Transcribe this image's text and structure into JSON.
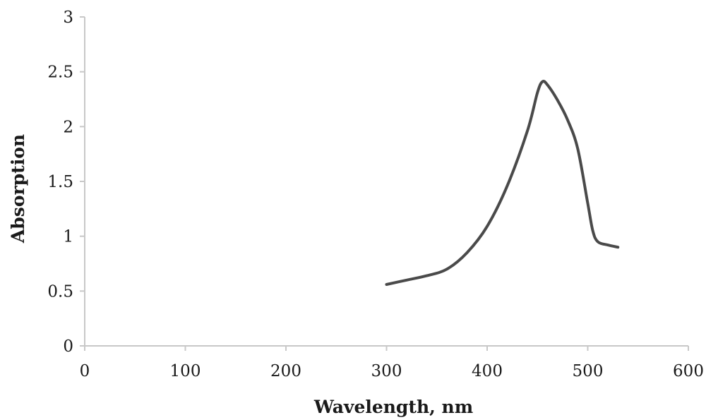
{
  "chart_data": {
    "type": "line",
    "title": "",
    "xlabel": "Wavelength, nm",
    "ylabel": "Absorption",
    "xlim": [
      0,
      600
    ],
    "ylim": [
      0,
      3
    ],
    "x_ticks": [
      "0",
      "100",
      "200",
      "300",
      "400",
      "500",
      "600"
    ],
    "y_ticks": [
      "0",
      "0.5",
      "1",
      "1.5",
      "2",
      "2.5",
      "3"
    ],
    "grid": false,
    "legend": "none",
    "line_color": "#4a4a4a",
    "axis_color": "#c8c8c8",
    "series": [
      {
        "x": [
          300,
          320,
          340,
          360,
          380,
          400,
          420,
          440,
          450,
          455,
          460,
          470,
          480,
          490,
          500,
          505,
          510,
          520,
          530
        ],
        "y": [
          0.56,
          0.6,
          0.64,
          0.7,
          0.85,
          1.09,
          1.46,
          1.96,
          2.31,
          2.41,
          2.38,
          2.24,
          2.06,
          1.8,
          1.3,
          1.05,
          0.95,
          0.92,
          0.9
        ]
      }
    ]
  }
}
